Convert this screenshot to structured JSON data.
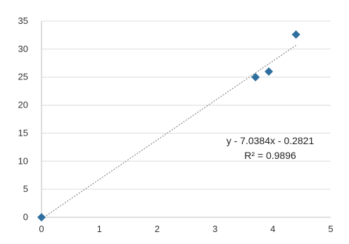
{
  "chart_data": {
    "type": "scatter",
    "title": "",
    "xlabel": "",
    "ylabel": "",
    "xlim": [
      0,
      5
    ],
    "ylim": [
      0,
      35
    ],
    "x_ticks": [
      "0",
      "1",
      "2",
      "3",
      "4",
      "5"
    ],
    "y_ticks": [
      "0",
      "5",
      "10",
      "15",
      "20",
      "25",
      "30",
      "35"
    ],
    "grid": true,
    "legend": "none",
    "series": [
      {
        "marker": "diamond",
        "color": "#2e6f9e",
        "points": [
          {
            "x": 0,
            "y": 0
          },
          {
            "x": 3.7,
            "y": 25
          },
          {
            "x": 3.93,
            "y": 26
          },
          {
            "x": 4.4,
            "y": 32.6
          }
        ]
      }
    ],
    "trendline": {
      "type": "linear",
      "slope": 7.0384,
      "intercept": -0.2821,
      "x_range": [
        0,
        4.4
      ],
      "color": "#8a8a8a",
      "style": "dotted"
    },
    "annotations": {
      "equation": "y - 7.0384x - 0.2821",
      "r_squared": "R² = 0.9896"
    }
  }
}
